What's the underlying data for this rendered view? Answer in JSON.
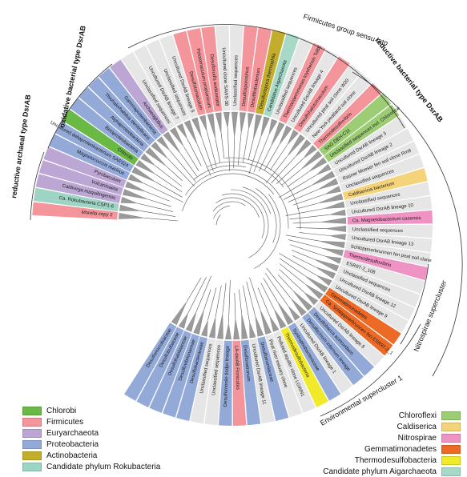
{
  "colors": {
    "Chlorobi": "#6ab945",
    "Firmicutes": "#f4959b",
    "Euryarchaeota": "#bca6d4",
    "Proteobacteria": "#93aad9",
    "Actinobacteria": "#c2ad2c",
    "Rokubacteria": "#9ed4c4",
    "Chloroflexi": "#9ccc73",
    "Caldiserica": "#f5d37a",
    "Nitrospirae": "#ee93c3",
    "Gemmatimonadetes": "#ed6a26",
    "Thermodesulfobacteria": "#f1ea2b",
    "Aigarchaeota": "#a6d9c7",
    "Unclassified": "#e6e6e6"
  },
  "clade_labels": {
    "firmicutes_group": "Firmicutes group sensu lato",
    "reductive_bacterial": "reductive bacterial type DsrAB",
    "oxidative_bacterial": "oxidative bacterial type DsrAB",
    "reductive_archaeal": "reductive archaeal type DsrAB",
    "nitrospirae_supercluster": "Nitrospirae supercluster",
    "environmental_supercluster": "Environmental supercluster 1"
  },
  "leaves": [
    {
      "label": "Morella copy 2",
      "group": "Firmicutes"
    },
    {
      "label": "Ca. Rokubacteria CSP1-6",
      "group": "Rokubacteria"
    },
    {
      "label": "Caldivirga maquilingensis",
      "group": "Euryarchaeota"
    },
    {
      "label": "Vulcanisaeta",
      "group": "Euryarchaeota"
    },
    {
      "label": "Pyrobaculum",
      "group": "Euryarchaeota"
    },
    {
      "label": "Magnetococcus marinus",
      "group": "Proteobacteria"
    },
    {
      "label": "Uncultured deltaproteobacterium SAR324",
      "group": "Proteobacteria"
    },
    {
      "label": "Chlorobi",
      "group": "Chlorobi"
    },
    {
      "label": "Betaproteobacteria",
      "group": "Proteobacteria"
    },
    {
      "label": "Alphaproteobacteria",
      "group": "Proteobacteria"
    },
    {
      "label": "Thiohalorhabdus denitrificans",
      "group": "Proteobacteria"
    },
    {
      "label": "Gammaproteobacteria",
      "group": "Proteobacteria"
    },
    {
      "label": "Archaeoglobus",
      "group": "Euryarchaeota"
    },
    {
      "label": "Unclassified sequences",
      "group": "Unclassified"
    },
    {
      "label": "Uncultured DsrAB lineage 7",
      "group": "Unclassified"
    },
    {
      "label": "Unclassified sequences",
      "group": "Unclassified"
    },
    {
      "label": "Uncultured DsrAB lineage 5",
      "group": "Unclassified"
    },
    {
      "label": "Desulfotomaculum",
      "group": "Firmicutes"
    },
    {
      "label": "Pelotomaculum propionicum",
      "group": "Firmicutes"
    },
    {
      "label": "Desulforudis audaxviator",
      "group": "Firmicutes"
    },
    {
      "label": "Uncultured clone SAWS-38",
      "group": "Unclassified"
    },
    {
      "label": "Unclassified sequences",
      "group": "Unclassified"
    },
    {
      "label": "Desulfosporosinus",
      "group": "Firmicutes"
    },
    {
      "label": "Desulfitobacterium",
      "group": "Firmicutes"
    },
    {
      "label": "Desulfurispora thermophila",
      "group": "Actinobacteria"
    },
    {
      "label": "Candidatus Aigarchaeota",
      "group": "Aigarchaeota"
    },
    {
      "label": "Unclassified sequences",
      "group": "Unclassified"
    },
    {
      "label": "Thermanaeromonas toyohensis ToBE",
      "group": "Firmicutes"
    },
    {
      "label": "Uncultured DsrAB lineage 4",
      "group": "Unclassified"
    },
    {
      "label": "Desulfohalotomaculum",
      "group": "Firmicutes"
    },
    {
      "label": "Uncultured peat soil clone W20",
      "group": "Unclassified"
    },
    {
      "label": "New York peatland soil clone",
      "group": "Unclassified"
    },
    {
      "label": "Thermodesulfovibrio",
      "group": "Firmicutes"
    },
    {
      "label": "SAG DEH-C11",
      "group": "Chloroflexi"
    },
    {
      "label": "Unclassified sequences incl. Chloroflexi",
      "group": "Chloroflexi"
    },
    {
      "label": "Uncultured DsrAB lineage 3",
      "group": "Unclassified"
    },
    {
      "label": "Uncultured DsrAB lineage 2",
      "group": "Unclassified"
    },
    {
      "label": "Rasner Moeser fen soil clone Rm9",
      "group": "Unclassified"
    },
    {
      "label": "Unclassified sequences",
      "group": "Unclassified"
    },
    {
      "label": "Caldisericia bacterium",
      "group": "Caldiserica"
    },
    {
      "label": "Unclassified sequences",
      "group": "Unclassified"
    },
    {
      "label": "Uncultured DsrAB lineage 10",
      "group": "Unclassified"
    },
    {
      "label": "Ca. Magnetobacterium casensis",
      "group": "Nitrospirae"
    },
    {
      "label": "Unclassified sequences",
      "group": "Unclassified"
    },
    {
      "label": "Uncultured DsrAB lineage 13",
      "group": "Unclassified"
    },
    {
      "label": "Schlöppnerbrunnen fen peat soil clone",
      "group": "Unclassified"
    },
    {
      "label": "Thermodesulfovibrio",
      "group": "Nitrospirae"
    },
    {
      "label": "ESR97-2_108",
      "group": "Unclassified"
    },
    {
      "label": "Unclassified sequences",
      "group": "Unclassified"
    },
    {
      "label": "Uncultured DsrAB lineage 12",
      "group": "Unclassified"
    },
    {
      "label": "Uncultured DsrAB lineage 9",
      "group": "Unclassified"
    },
    {
      "label": "Gemmatimonadetes",
      "group": "Gemmatimonadetes"
    },
    {
      "label": "Ca. Schlöppnerbrunnen fen ESR97-2_1",
      "group": "Gemmatimonadetes"
    },
    {
      "label": "Uncultured DsrAB lineage 8",
      "group": "Unclassified"
    },
    {
      "label": "Desulfobacca acetoxidans",
      "group": "Proteobacteria"
    },
    {
      "label": "Desulfacinum infernum lineage",
      "group": "Proteobacteria"
    },
    {
      "label": "Uncultured DsrAB lineage 1",
      "group": "Unclassified"
    },
    {
      "label": "Syntrophobacteraceae",
      "group": "Proteobacteria"
    },
    {
      "label": "Thermodesulfobacteria",
      "group": "Thermodesulfobacteria"
    },
    {
      "label": "Polluted aquifer clone LGWN1",
      "group": "Unclassified"
    },
    {
      "label": "Peat river estuary clone",
      "group": "Unclassified"
    },
    {
      "label": "Desulfomonilaceae",
      "group": "Proteobacteria"
    },
    {
      "label": "Uncultured DsrAB lineage 11",
      "group": "Unclassified"
    },
    {
      "label": "Desulfonatronum",
      "group": "Proteobacteria"
    },
    {
      "label": "LA-dsrAB Firmicutes",
      "group": "Firmicutes"
    },
    {
      "label": "Desulfomonile tiedjei lineage",
      "group": "Proteobacteria"
    },
    {
      "label": "Unclassified sequences",
      "group": "Unclassified"
    },
    {
      "label": "Unclassified sequences",
      "group": "Unclassified"
    },
    {
      "label": "Desulfobacteraceae",
      "group": "Proteobacteria"
    },
    {
      "label": "Desulfovibrionaceae",
      "group": "Proteobacteria"
    },
    {
      "label": "Desulfohalobiaceae",
      "group": "Proteobacteria"
    },
    {
      "label": "Desulfobulbaceae",
      "group": "Proteobacteria"
    },
    {
      "label": "Desulfomicrobiaceae",
      "group": "Proteobacteria"
    }
  ],
  "legend_left": [
    {
      "label": "Chlorobi",
      "key": "Chlorobi"
    },
    {
      "label": "Firmicutes",
      "key": "Firmicutes"
    },
    {
      "label": "Euryarchaeota",
      "key": "Euryarchaeota"
    },
    {
      "label": "Proteobacteria",
      "key": "Proteobacteria"
    },
    {
      "label": "Actinobacteria",
      "key": "Actinobacteria"
    },
    {
      "label": "Candidate phylum Rokubacteria",
      "key": "Rokubacteria"
    }
  ],
  "legend_right": [
    {
      "label": "Chloroflexi",
      "key": "Chloroflexi"
    },
    {
      "label": "Caldiserica",
      "key": "Caldiserica"
    },
    {
      "label": "Nitrospirae",
      "key": "Nitrospirae"
    },
    {
      "label": "Gemmatimonadetes",
      "key": "Gemmatimonadetes"
    },
    {
      "label": "Thermodesulfobacteria",
      "key": "Thermodesulfobacteria"
    },
    {
      "label": "Candidate phylum Aigarchaeota",
      "key": "Aigarchaeota"
    }
  ]
}
